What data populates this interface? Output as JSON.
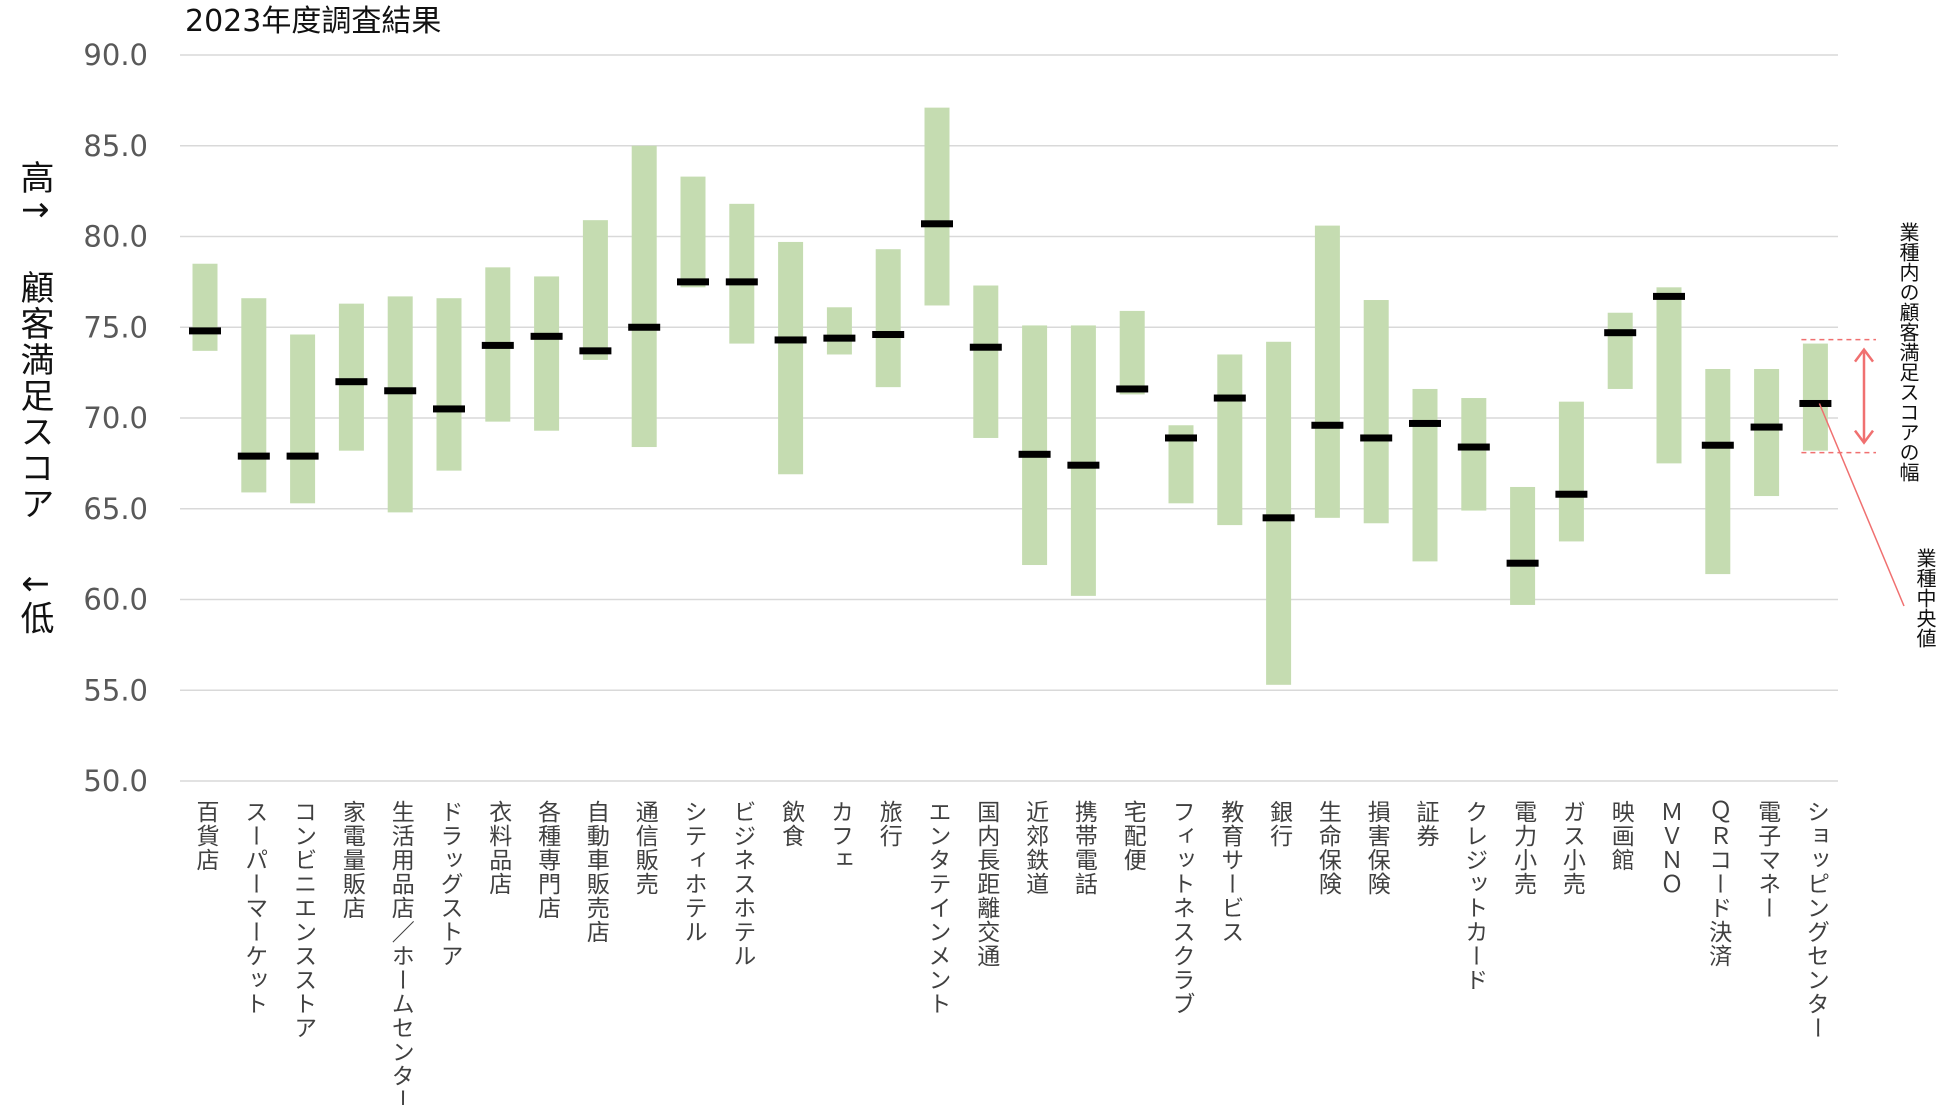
{
  "chart_data": {
    "type": "bar",
    "title": "2023年度調査結果",
    "ylabel": "高↑ 顧客満足スコア ↓低",
    "ylabel_parts": {
      "high": "高↑",
      "main": "顧客満足スコア",
      "low": "↓低"
    },
    "ylim": [
      50,
      90
    ],
    "yticks": [
      "50.0",
      "55.0",
      "60.0",
      "65.0",
      "70.0",
      "75.0",
      "80.0",
      "85.0",
      "90.0"
    ],
    "ytick_values": [
      50,
      55,
      60,
      65,
      70,
      75,
      80,
      85,
      90
    ],
    "grid": true,
    "bar_color": "#c5dcb1",
    "median_color": "#000000",
    "annotation_color": "#f07070",
    "categories": [
      "百貨店",
      "スーパーマーケット",
      "コンビニエンスストア",
      "家電量販店",
      "生活用品店／ホームセンター",
      "ドラッグストア",
      "衣料品店",
      "各種専門店",
      "自動車販売店",
      "通信販売",
      "シティホテル",
      "ビジネスホテル",
      "飲食",
      "カフェ",
      "旅行",
      "エンタテインメント",
      "国内長距離交通",
      "近郊鉄道",
      "携帯電話",
      "宅配便",
      "フィットネスクラブ",
      "教育サービス",
      "銀行",
      "生命保険",
      "損害保険",
      "証券",
      "クレジットカード",
      "電力小売",
      "ガス小売",
      "映画館",
      "ＭＶＮＯ",
      "ＱＲコード決済",
      "電子マネー",
      "ショッピングセンター"
    ],
    "series": [
      {
        "name": "業種内の顧客満足スコアの幅",
        "low": [
          73.7,
          65.9,
          65.3,
          68.2,
          64.8,
          67.1,
          69.8,
          69.3,
          73.2,
          68.4,
          77.2,
          74.1,
          66.9,
          73.5,
          71.7,
          76.2,
          68.9,
          61.9,
          60.2,
          71.3,
          65.3,
          64.1,
          55.3,
          64.5,
          64.2,
          62.1,
          64.9,
          59.7,
          63.2,
          71.6,
          67.5,
          61.4,
          65.7,
          68.2
        ],
        "high": [
          78.5,
          76.6,
          74.6,
          76.3,
          76.7,
          76.6,
          78.3,
          77.8,
          80.9,
          85.0,
          83.3,
          81.8,
          79.7,
          76.1,
          79.3,
          87.1,
          77.3,
          75.1,
          75.1,
          75.9,
          69.6,
          73.5,
          74.2,
          80.6,
          76.5,
          71.6,
          71.1,
          66.2,
          70.9,
          75.8,
          77.2,
          72.7,
          72.7,
          74.1
        ]
      },
      {
        "name": "業種中央値",
        "values": [
          74.8,
          67.9,
          67.9,
          72.0,
          71.5,
          70.5,
          74.0,
          74.5,
          73.7,
          75.0,
          77.5,
          77.5,
          74.3,
          74.4,
          74.6,
          80.7,
          73.9,
          68.0,
          67.4,
          71.6,
          68.9,
          71.1,
          64.5,
          69.6,
          68.9,
          69.7,
          68.4,
          62.0,
          65.8,
          74.7,
          76.7,
          68.5,
          69.5,
          70.8
        ]
      }
    ],
    "annotations": {
      "range_label": "業種内の顧客満足スコアの幅",
      "median_label": "業種中央値"
    }
  }
}
